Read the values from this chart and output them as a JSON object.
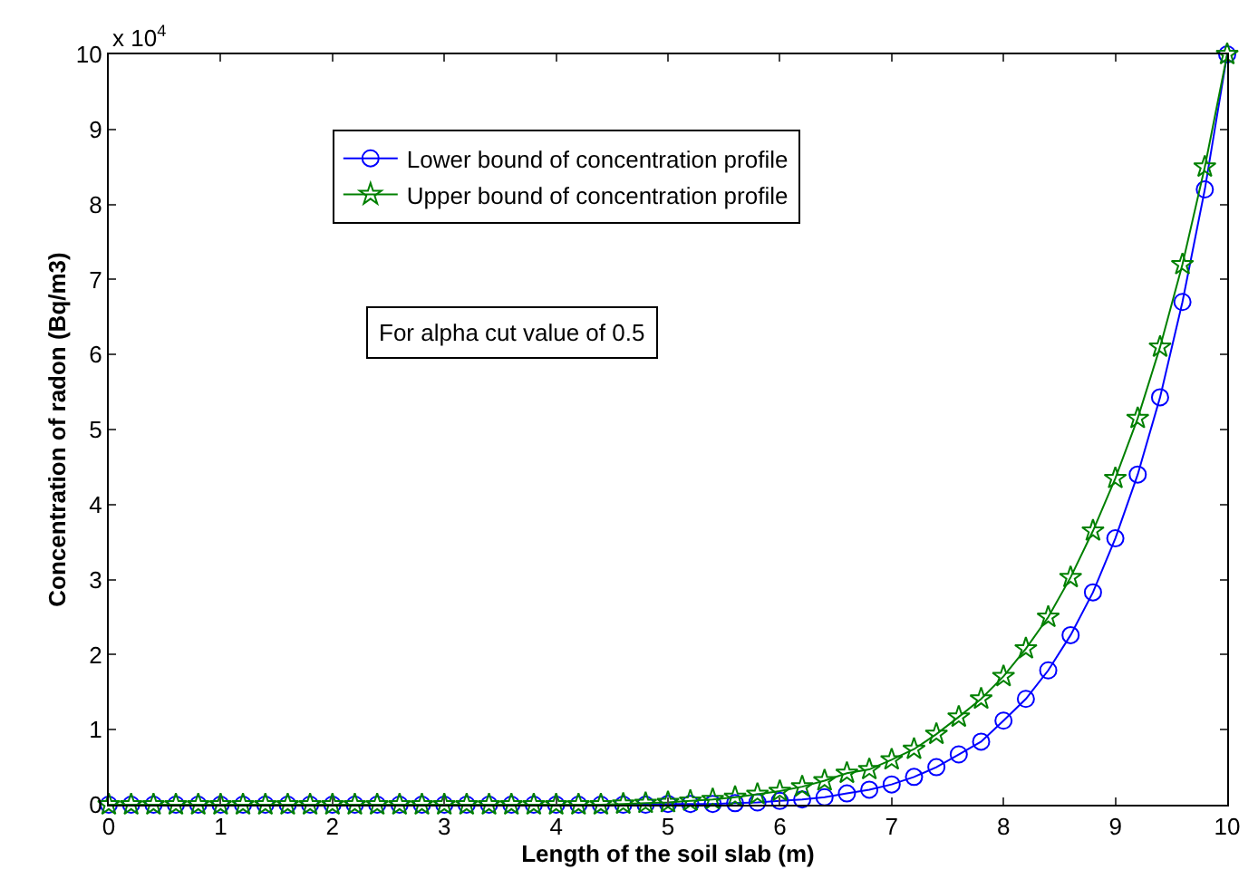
{
  "chart_data": {
    "type": "line",
    "xlabel": "Length of the soil slab (m)",
    "ylabel": "Concentration of radon (Bq/m3)",
    "annotations": [
      "x 10$^{4}$",
      "For alpha cut value of 0.5"
    ],
    "x": [
      0,
      0.2,
      0.4,
      0.6,
      0.8,
      1,
      1.2,
      1.4,
      1.6,
      1.8,
      2,
      2.2,
      2.4,
      2.6,
      2.8,
      3,
      3.2,
      3.4,
      3.6,
      3.8,
      4,
      4.2,
      4.4,
      4.6,
      4.8,
      5,
      5.2,
      5.4,
      5.6,
      5.8,
      6,
      6.2,
      6.4,
      6.6,
      6.8,
      7,
      7.2,
      7.4,
      7.6,
      7.8,
      8,
      8.2,
      8.4,
      8.6,
      8.8,
      9,
      9.2,
      9.4,
      9.6,
      9.8,
      10
    ],
    "series": [
      {
        "name": "Lower bound of concentration profile",
        "color": "#0000ff",
        "marker": "circle",
        "values": [
          0,
          0,
          0,
          0,
          0,
          0,
          0,
          0,
          0,
          0,
          0,
          0,
          0,
          0,
          0,
          0,
          0,
          0,
          0,
          0,
          0,
          0,
          0,
          0,
          0,
          0.01,
          0.01,
          0.01,
          0.02,
          0.03,
          0.05,
          0.07,
          0.1,
          0.15,
          0.2,
          0.27,
          0.37,
          0.5,
          0.67,
          0.84,
          1.12,
          1.41,
          1.79,
          2.26,
          2.83,
          3.55,
          4.4,
          5.43,
          6.7,
          8.2,
          10
        ]
      },
      {
        "name": "Upper bound of concentration profile",
        "color": "#008000",
        "marker": "star",
        "values": [
          0,
          0,
          0,
          0,
          0,
          0,
          0,
          0,
          0,
          0,
          0,
          0,
          0,
          0,
          0,
          0,
          0,
          0,
          0,
          0,
          0,
          0,
          0,
          0.01,
          0.02,
          0.03,
          0.05,
          0.07,
          0.1,
          0.14,
          0.18,
          0.24,
          0.32,
          0.42,
          0.47,
          0.6,
          0.74,
          0.94,
          1.17,
          1.41,
          1.71,
          2.08,
          2.5,
          3.03,
          3.65,
          4.35,
          5.15,
          6.1,
          7.2,
          8.5,
          10
        ]
      }
    ],
    "xlim": [
      0,
      10
    ],
    "xticks": [
      0,
      1,
      2,
      3,
      4,
      5,
      6,
      7,
      8,
      9,
      10
    ],
    "ylim": [
      0,
      10
    ],
    "yticks": [
      0,
      1,
      2,
      3,
      4,
      5,
      6,
      7,
      8,
      9,
      10
    ],
    "legend": "top left",
    "line_style": "solid"
  }
}
